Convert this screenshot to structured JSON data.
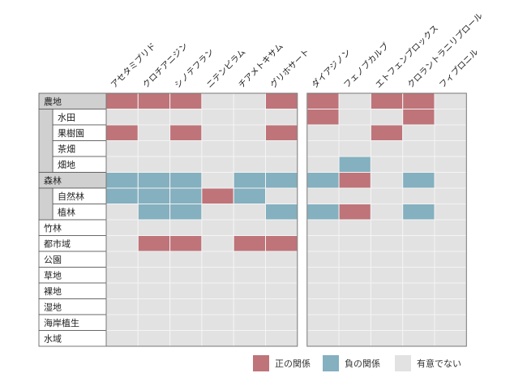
{
  "chart_data": {
    "type": "heatmap",
    "title": "",
    "columns": [
      "アセタミプリド",
      "クロチアニジン",
      "シノテフラン",
      "ニテンピラム",
      "チアメトキサム",
      "グリホサート",
      "ダイアジノン",
      "フェノブカルブ",
      "エトフェンプロックス",
      "クロラントラニリプロール",
      "フィプロニル"
    ],
    "rows": [
      {
        "label": "農地",
        "level": 0,
        "values": [
          "pos",
          "pos",
          "pos",
          "none",
          "none",
          "pos",
          "pos",
          "none",
          "pos",
          "pos",
          "none"
        ]
      },
      {
        "label": "水田",
        "level": 1,
        "values": [
          "none",
          "none",
          "none",
          "none",
          "none",
          "none",
          "pos",
          "none",
          "none",
          "pos",
          "none"
        ]
      },
      {
        "label": "果樹園",
        "level": 1,
        "values": [
          "pos",
          "none",
          "pos",
          "none",
          "none",
          "pos",
          "none",
          "none",
          "pos",
          "none",
          "none"
        ]
      },
      {
        "label": "茶畑",
        "level": 1,
        "values": [
          "none",
          "none",
          "none",
          "none",
          "none",
          "none",
          "none",
          "none",
          "none",
          "none",
          "none"
        ]
      },
      {
        "label": "畑地",
        "level": 1,
        "values": [
          "none",
          "none",
          "none",
          "none",
          "none",
          "none",
          "none",
          "neg",
          "none",
          "none",
          "none"
        ]
      },
      {
        "label": "森林",
        "level": 0,
        "values": [
          "neg",
          "neg",
          "neg",
          "none",
          "neg",
          "neg",
          "neg",
          "pos",
          "none",
          "neg",
          "none"
        ]
      },
      {
        "label": "自然林",
        "level": 1,
        "values": [
          "neg",
          "neg",
          "neg",
          "pos",
          "neg",
          "none",
          "none",
          "none",
          "none",
          "none",
          "none"
        ]
      },
      {
        "label": "植林",
        "level": 1,
        "values": [
          "none",
          "neg",
          "neg",
          "none",
          "none",
          "neg",
          "neg",
          "pos",
          "none",
          "neg",
          "none"
        ]
      },
      {
        "label": "竹林",
        "level": 0,
        "values": [
          "none",
          "none",
          "none",
          "none",
          "none",
          "none",
          "none",
          "none",
          "none",
          "none",
          "none"
        ]
      },
      {
        "label": "都市域",
        "level": 0,
        "values": [
          "none",
          "pos",
          "pos",
          "none",
          "pos",
          "pos",
          "none",
          "none",
          "none",
          "none",
          "none"
        ]
      },
      {
        "label": "公園",
        "level": 0,
        "values": [
          "none",
          "none",
          "none",
          "none",
          "none",
          "none",
          "none",
          "none",
          "none",
          "none",
          "none"
        ]
      },
      {
        "label": "草地",
        "level": 0,
        "values": [
          "none",
          "none",
          "none",
          "none",
          "none",
          "none",
          "none",
          "none",
          "none",
          "none",
          "none"
        ]
      },
      {
        "label": "裸地",
        "level": 0,
        "values": [
          "none",
          "none",
          "none",
          "none",
          "none",
          "none",
          "none",
          "none",
          "none",
          "none",
          "none"
        ]
      },
      {
        "label": "湿地",
        "level": 0,
        "values": [
          "none",
          "none",
          "none",
          "none",
          "none",
          "none",
          "none",
          "none",
          "none",
          "none",
          "none"
        ]
      },
      {
        "label": "海岸植生",
        "level": 0,
        "values": [
          "none",
          "none",
          "none",
          "none",
          "none",
          "none",
          "none",
          "none",
          "none",
          "none",
          "none"
        ]
      },
      {
        "label": "水域",
        "level": 0,
        "values": [
          "none",
          "none",
          "none",
          "none",
          "none",
          "none",
          "none",
          "none",
          "none",
          "none",
          "none"
        ]
      }
    ],
    "groups": [
      {
        "label": "農地",
        "children": [
          "水田",
          "果樹園",
          "茶畑",
          "畑地"
        ]
      },
      {
        "label": "森林",
        "children": [
          "自然林",
          "植林"
        ]
      }
    ],
    "column_split_after": 6,
    "legend": [
      {
        "key": "pos",
        "label": "正の関係",
        "color": "#be7479"
      },
      {
        "key": "neg",
        "label": "負の関係",
        "color": "#84b0bf"
      },
      {
        "key": "none",
        "label": "有意でない",
        "color": "#e2e2e2"
      }
    ],
    "legend_position": "bottom-right"
  }
}
